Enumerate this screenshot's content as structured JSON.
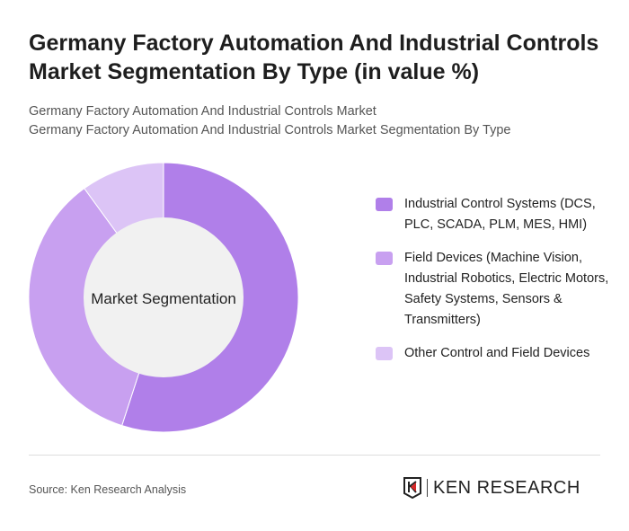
{
  "title": "Germany Factory Automation And Industrial Controls Market Segmentation By Type (in value %)",
  "subtitle_lines": [
    "Germany Factory Automation And Industrial Controls Market",
    "Germany Factory Automation And Industrial Controls Market Segmentation By Type"
  ],
  "chart_data": {
    "type": "pie",
    "variant": "donut",
    "center_label": "Market Segmentation",
    "categories": [
      "Industrial Control Systems (DCS, PLC, SCADA, PLM, MES, HMI)",
      "Field Devices (Machine Vision, Industrial Robotics, Electric Motors, Safety Systems, Sensors & Transmitters)",
      "Other Control and Field Devices"
    ],
    "values": [
      55,
      35,
      10
    ],
    "colors": [
      "#b07fe9",
      "#c8a0f0",
      "#dcc4f6"
    ],
    "legend": "right"
  },
  "footer": {
    "source": "Source: Ken Research Analysis",
    "logo_text": "KEN RESEARCH"
  }
}
